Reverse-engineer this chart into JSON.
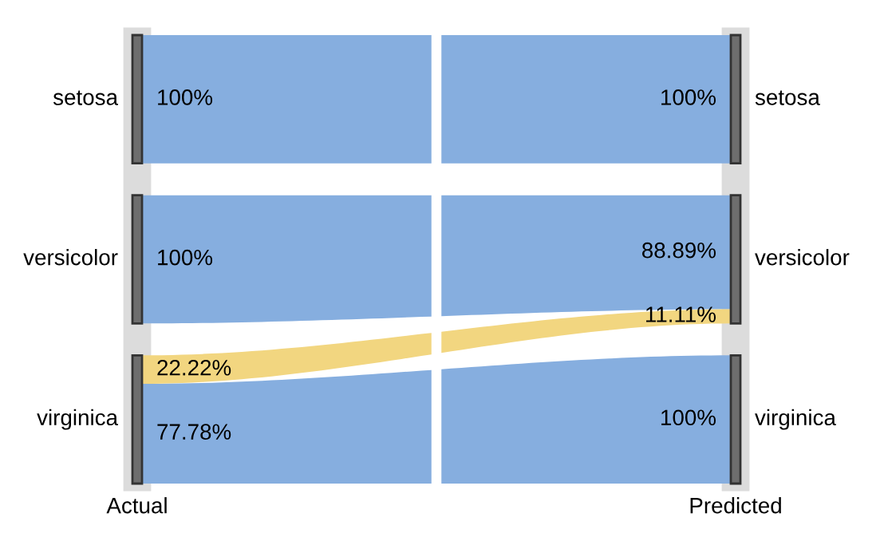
{
  "chart_data": {
    "type": "other",
    "categories": [
      "setosa",
      "versicolor",
      "virginica"
    ],
    "y_categories": [
      "setosa",
      "versicolor",
      "virginica"
    ],
    "annotations": [
      "Actual",
      "Predicted"
    ],
    "series": [
      {
        "values": [
          100,
          null,
          null
        ],
        "value_labels": [
          "100%",
          null,
          null
        ],
        "colors": [
          "#86aedf",
          null,
          null
        ]
      },
      {
        "values": [
          null,
          100,
          null
        ],
        "value_labels": [
          null,
          "100%",
          null
        ],
        "colors": [
          null,
          "#86aedf",
          null
        ]
      },
      {
        "values": [
          null,
          22.22,
          77.78
        ],
        "value_labels": [
          null,
          "22.22%",
          "77.78%"
        ],
        "colors": [
          null,
          "#f2d680",
          "#86aedf"
        ]
      },
      {
        "values": [
          100,
          null,
          null
        ],
        "value_labels": [
          "100%",
          null,
          null
        ],
        "colors": [
          "#86aedf",
          null,
          null
        ]
      },
      {
        "values": [
          null,
          88.89,
          null
        ],
        "value_labels": [
          null,
          "88.89%",
          null
        ],
        "colors": [
          null,
          "#86aedf",
          null
        ]
      },
      {
        "values": [
          null,
          11.11,
          100
        ],
        "value_labels": [
          null,
          "11.11%",
          "100%"
        ],
        "colors": [
          null,
          "#f2d680",
          "#86aedf"
        ]
      }
    ]
  }
}
